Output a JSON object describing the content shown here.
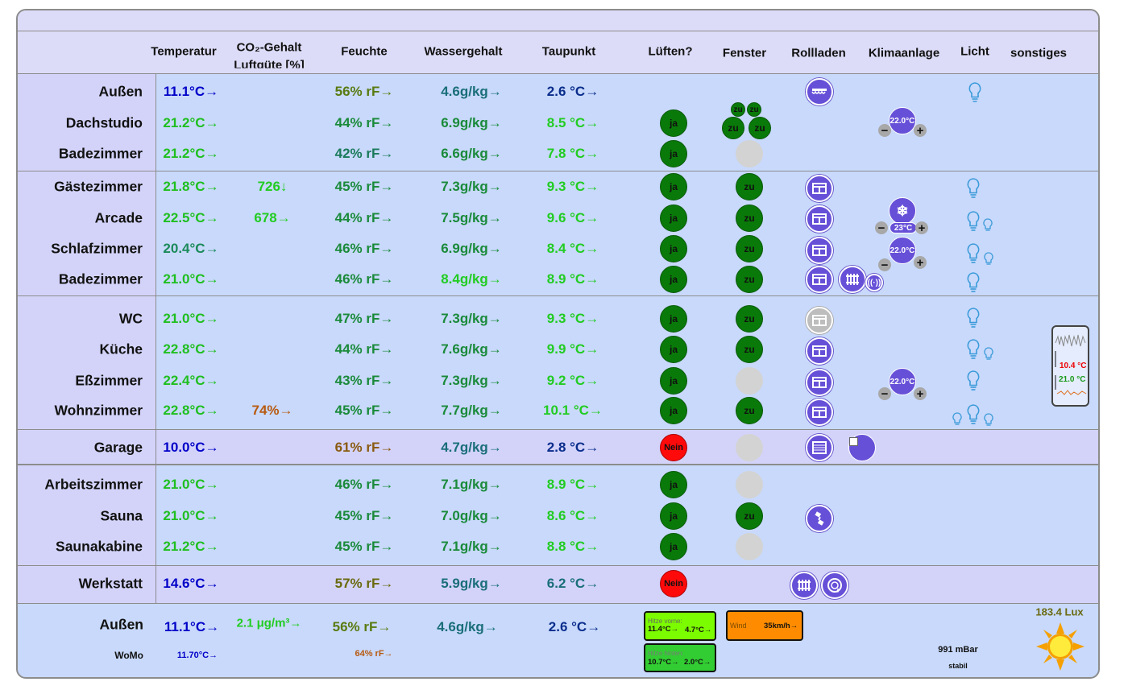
{
  "colors": {
    "panel": "#c8d9fb",
    "section_label_bg": "#d3d3fa",
    "fenster_green": "#097a09",
    "nein_red": "#ff0a0a",
    "device_purple": "#6750d8"
  },
  "headers": {
    "temperatur": "Temperatur",
    "co2_line1": "CO₂-Gehalt",
    "co2_line2": "Luftgüte [%]",
    "feuchte": "Feuchte",
    "wassergehalt": "Wassergehalt",
    "taupunkt": "Taupunkt",
    "lueften": "Lüften?",
    "fenster": "Fenster",
    "rollladen": "Rollladen",
    "klimaanlage": "Klimaanlage",
    "licht": "Licht",
    "sonstiges": "sonstiges"
  },
  "rows": [
    {
      "name": "Außen",
      "temp": "11.1°C→",
      "tempColor": "#0000c8",
      "co2": "",
      "co2Color": "#11cc11",
      "hum": "56% rF→",
      "humColor": "#5a7a10",
      "water": "4.6g/kg→",
      "waterColor": "#1a6e7a",
      "dew": "2.6 °C→",
      "dewColor": "#0a2d8c",
      "lueften": "",
      "fenster": ""
    },
    {
      "name": "Dachstudio",
      "temp": "21.2°C→",
      "tempColor": "#1fbf1f",
      "co2": "",
      "co2Color": "#11cc11",
      "hum": "44% rF→",
      "humColor": "#1a8a3a",
      "water": "6.9g/kg→",
      "waterColor": "#1a8a3a",
      "dew": "8.5 °C→",
      "dewColor": "#22cc22",
      "lueften": "ja",
      "fenster": "zu"
    },
    {
      "name": "Badezimmer",
      "temp": "21.2°C→",
      "tempColor": "#1fbf1f",
      "co2": "",
      "co2Color": "#11cc11",
      "hum": "42% rF→",
      "humColor": "#1a7a5a",
      "water": "6.6g/kg→",
      "waterColor": "#1a8a3a",
      "dew": "7.8 °C→",
      "dewColor": "#22cc22",
      "lueften": "ja",
      "fenster": ""
    },
    {
      "name": "Gästezimmer",
      "temp": "21.8°C→",
      "tempColor": "#1fbf1f",
      "co2": "726↓",
      "co2Color": "#22cc22",
      "hum": "45% rF→",
      "humColor": "#1a8a3a",
      "water": "7.3g/kg→",
      "waterColor": "#1a8a3a",
      "dew": "9.3 °C→",
      "dewColor": "#22cc22",
      "lueften": "ja",
      "fenster": "zu"
    },
    {
      "name": "Arcade",
      "temp": "22.5°C→",
      "tempColor": "#1fbf1f",
      "co2": "678→",
      "co2Color": "#22cc22",
      "hum": "44% rF→",
      "humColor": "#1a8a3a",
      "water": "7.5g/kg→",
      "waterColor": "#1a8a3a",
      "dew": "9.6 °C→",
      "dewColor": "#22cc22",
      "lueften": "ja",
      "fenster": "zu"
    },
    {
      "name": "Schlafzimmer",
      "temp": "20.4°C→",
      "tempColor": "#1a8a5a",
      "co2": "",
      "co2Color": "#11cc11",
      "hum": "46% rF→",
      "humColor": "#1a8a3a",
      "water": "6.9g/kg→",
      "waterColor": "#1a8a3a",
      "dew": "8.4 °C→",
      "dewColor": "#22cc22",
      "lueften": "ja",
      "fenster": "zu"
    },
    {
      "name": "Badezimmer",
      "temp": "21.0°C→",
      "tempColor": "#1fbf1f",
      "co2": "",
      "co2Color": "#11cc11",
      "hum": "46% rF→",
      "humColor": "#1a8a3a",
      "water": "8.4g/kg→",
      "waterColor": "#22cc22",
      "dew": "8.9 °C→",
      "dewColor": "#22cc22",
      "lueften": "ja",
      "fenster": "zu"
    },
    {
      "name": "WC",
      "temp": "21.0°C→",
      "tempColor": "#1fbf1f",
      "co2": "",
      "co2Color": "#11cc11",
      "hum": "47% rF→",
      "humColor": "#1a8a3a",
      "water": "7.3g/kg→",
      "waterColor": "#1a8a3a",
      "dew": "9.3 °C→",
      "dewColor": "#22cc22",
      "lueften": "ja",
      "fenster": "zu"
    },
    {
      "name": "Küche",
      "temp": "22.8°C→",
      "tempColor": "#1fbf1f",
      "co2": "",
      "co2Color": "#11cc11",
      "hum": "44% rF→",
      "humColor": "#1a8a3a",
      "water": "7.6g/kg→",
      "waterColor": "#1a8a3a",
      "dew": "9.9 °C→",
      "dewColor": "#22cc22",
      "lueften": "ja",
      "fenster": "zu"
    },
    {
      "name": "Eßzimmer",
      "temp": "22.4°C→",
      "tempColor": "#1fbf1f",
      "co2": "",
      "co2Color": "#11cc11",
      "hum": "43% rF→",
      "humColor": "#1a8a3a",
      "water": "7.3g/kg→",
      "waterColor": "#1a8a3a",
      "dew": "9.2 °C→",
      "dewColor": "#22cc22",
      "lueften": "ja",
      "fenster": ""
    },
    {
      "name": "Wohnzimmer",
      "temp": "22.8°C→",
      "tempColor": "#1fbf1f",
      "co2": "74%→",
      "co2Color": "#b85a10",
      "hum": "45% rF→",
      "humColor": "#1a8a3a",
      "water": "7.7g/kg→",
      "waterColor": "#1a8a3a",
      "dew": "10.1 °C→",
      "dewColor": "#22cc22",
      "lueften": "ja",
      "fenster": "zu"
    },
    {
      "name": "Garage",
      "temp": "10.0°C→",
      "tempColor": "#0000c8",
      "co2": "",
      "co2Color": "#11cc11",
      "hum": "61% rF→",
      "humColor": "#8a5a10",
      "water": "4.7g/kg→",
      "waterColor": "#1a6e7a",
      "dew": "2.8 °C→",
      "dewColor": "#0a2d8c",
      "lueften": "Nein",
      "fenster": ""
    },
    {
      "name": "Arbeitszimmer",
      "temp": "21.0°C→",
      "tempColor": "#1fbf1f",
      "co2": "",
      "co2Color": "#11cc11",
      "hum": "46% rF→",
      "humColor": "#1a8a3a",
      "water": "7.1g/kg→",
      "waterColor": "#1a8a3a",
      "dew": "8.9 °C→",
      "dewColor": "#22cc22",
      "lueften": "ja",
      "fenster": ""
    },
    {
      "name": "Sauna",
      "temp": "21.0°C→",
      "tempColor": "#1fbf1f",
      "co2": "",
      "co2Color": "#11cc11",
      "hum": "45% rF→",
      "humColor": "#1a8a3a",
      "water": "7.0g/kg→",
      "waterColor": "#1a8a3a",
      "dew": "8.6 °C→",
      "dewColor": "#22cc22",
      "lueften": "ja",
      "fenster": "zu"
    },
    {
      "name": "Saunakabine",
      "temp": "21.2°C→",
      "tempColor": "#1fbf1f",
      "co2": "",
      "co2Color": "#11cc11",
      "hum": "45% rF→",
      "humColor": "#1a8a3a",
      "water": "7.1g/kg→",
      "waterColor": "#1a8a3a",
      "dew": "8.8 °C→",
      "dewColor": "#22cc22",
      "lueften": "ja",
      "fenster": ""
    },
    {
      "name": "Werkstatt",
      "temp": "14.6°C→",
      "tempColor": "#0000c8",
      "co2": "",
      "co2Color": "#11cc11",
      "hum": "57% rF→",
      "humColor": "#6a6a10",
      "water": "5.9g/kg→",
      "waterColor": "#1a6e7a",
      "dew": "6.2 °C→",
      "dewColor": "#1a6e7a",
      "lueften": "Nein",
      "fenster": ""
    }
  ],
  "dachstudio_small_windows": "zu",
  "klima": {
    "dachstudio": "22.0°C",
    "arcade": "23°C",
    "schlafzimmer": "22.0°C",
    "esszimmer": "22.0°C"
  },
  "sensor_widget": {
    "top_value": "10.4 °C",
    "bottom_value": "21.0 °C"
  },
  "footer": {
    "aussen_label": "Außen",
    "aussen_temp": "11.1°C→",
    "aussen_pm": "2.1 μg/m³→",
    "aussen_hum": "56% rF→",
    "aussen_water": "4.6g/kg→",
    "aussen_dew": "2.6 °C→",
    "womo_label": "WoMo",
    "womo_temp": "11.70°C→",
    "womo_hum": "64% rF→",
    "hitze_vorne_label": "Hitze vorne:",
    "hitze_vorne_a": "11.4°C→",
    "hitze_vorne_b": "4.7°C→",
    "hitze_hinten_label": "Hitze hinten:",
    "hitze_hinten_a": "10.7°C→",
    "hitze_hinten_b": "2.0°C→",
    "wind_label": "Wind",
    "wind_value": "35km/h→",
    "pressure": "991 mBar",
    "pressure_trend": "stabil",
    "lux": "183.4 Lux"
  }
}
